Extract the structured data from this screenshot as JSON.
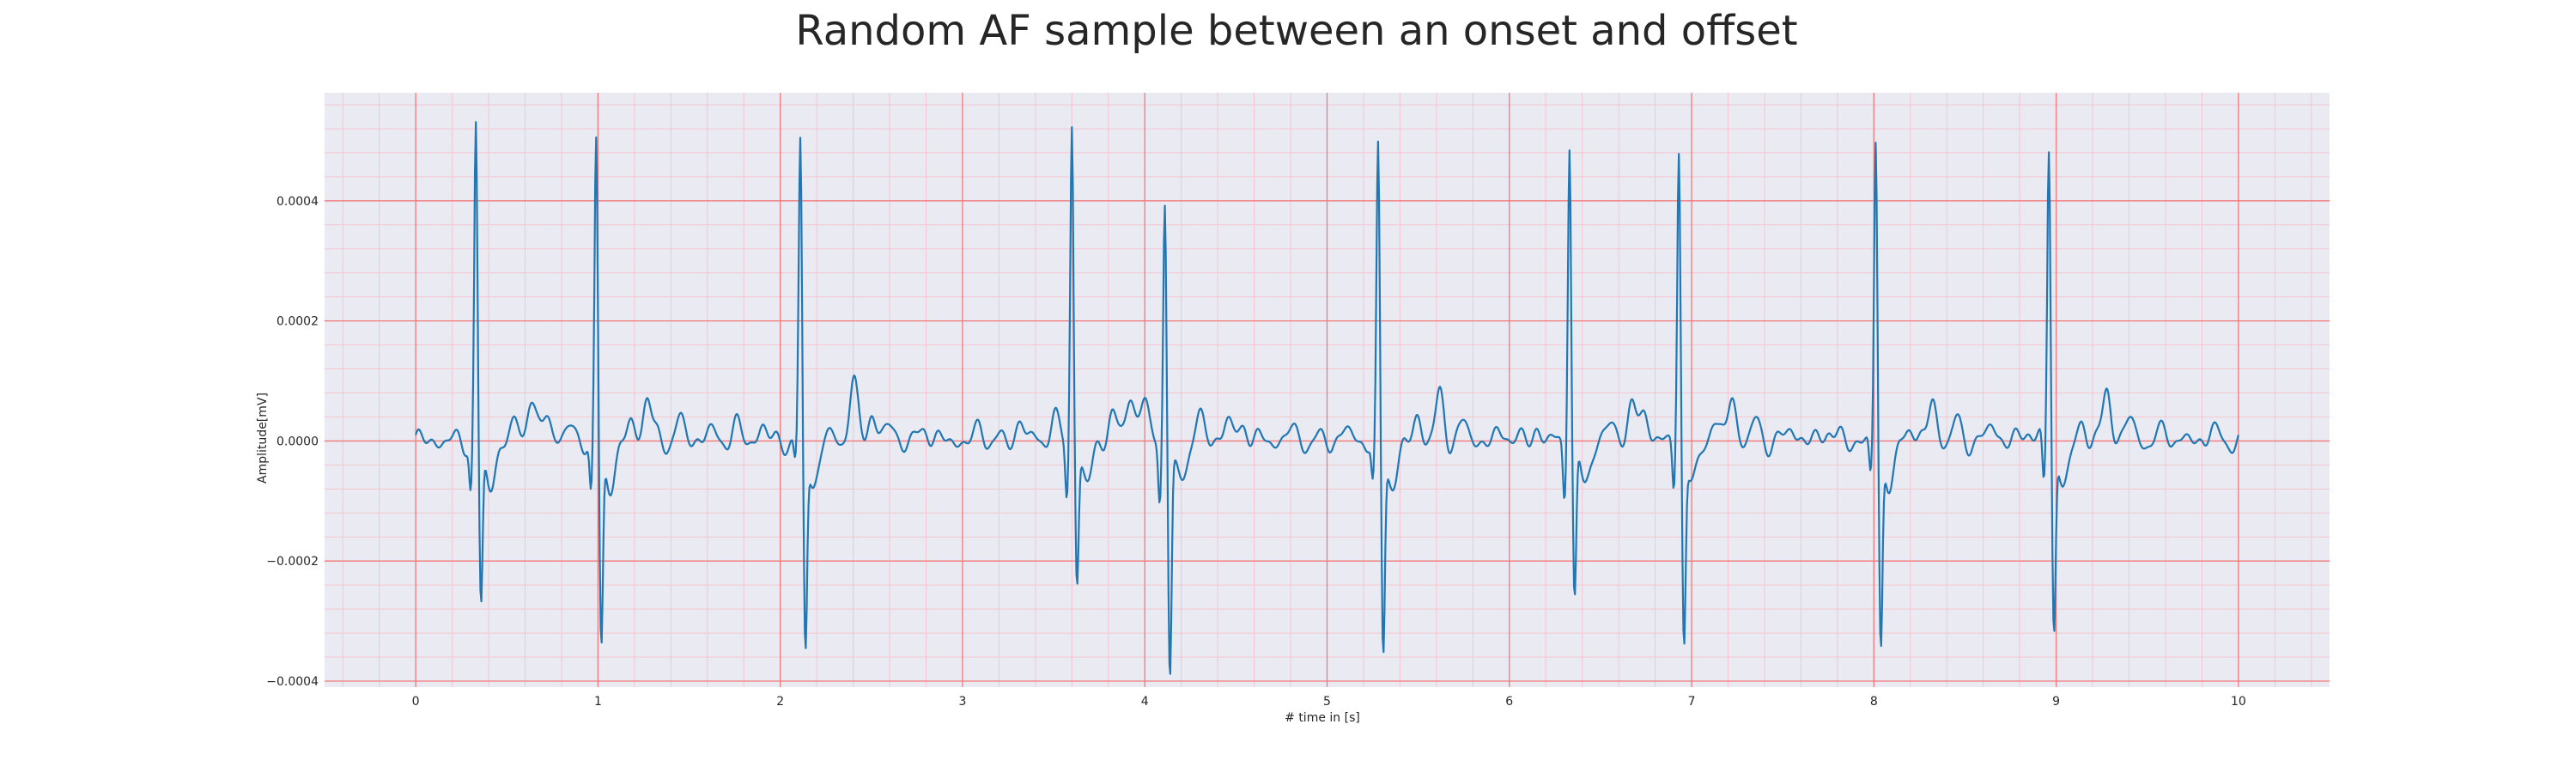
{
  "chart_data": {
    "type": "line",
    "title": "Random AF sample between an onset and offset",
    "xlabel": "# time in [s]",
    "ylabel": "Amplitude[mV]",
    "xlim": [
      -0.5,
      10.5
    ],
    "ylim": [
      -0.00041,
      0.00058
    ],
    "x_ticks": [
      0,
      1,
      2,
      3,
      4,
      5,
      6,
      7,
      8,
      9,
      10
    ],
    "x_tick_labels": [
      "0",
      "1",
      "2",
      "3",
      "4",
      "5",
      "6",
      "7",
      "8",
      "9",
      "10"
    ],
    "y_ticks": [
      -0.0004,
      -0.0002,
      0.0,
      0.0002,
      0.0004
    ],
    "y_tick_labels": [
      "−0.0004",
      "−0.0002",
      "0.0000",
      "0.0002",
      "0.0004"
    ],
    "grid": true,
    "minor_grid": true,
    "colors": {
      "plot_background": "#eaeaf2",
      "major_grid": "#f27a7a",
      "minor_grid": "#f3c6d0",
      "series": "#1f77b4",
      "text": "#262626"
    },
    "series": [
      {
        "beats": [
          {
            "t": 0.33,
            "r": 0.000525,
            "q": -8e-05,
            "s": -0.00027
          },
          {
            "t": 0.99,
            "r": 0.000495,
            "q": -9e-05,
            "s": -0.000335
          },
          {
            "t": 2.11,
            "r": 0.000495,
            "q": -4e-05,
            "s": -0.000335
          },
          {
            "t": 3.6,
            "r": 0.000535,
            "q": -9e-05,
            "s": -0.00022
          },
          {
            "t": 4.11,
            "r": 0.000405,
            "q": -0.0001,
            "s": -0.000375
          },
          {
            "t": 5.28,
            "r": 0.00048,
            "q": -7e-05,
            "s": -0.00034
          },
          {
            "t": 6.33,
            "r": 0.00051,
            "q": -9e-05,
            "s": -0.00026
          },
          {
            "t": 6.93,
            "r": 0.000485,
            "q": -8e-05,
            "s": -0.00032
          },
          {
            "t": 8.01,
            "r": 0.0005,
            "q": -6e-05,
            "s": -0.000335
          },
          {
            "t": 8.96,
            "r": 0.000495,
            "q": -8e-05,
            "s": -0.000305
          }
        ],
        "waves": [
          {
            "t": 0.55,
            "a": 3e-05
          },
          {
            "t": 0.63,
            "a": 7.2e-05
          },
          {
            "t": 0.72,
            "a": 5.5e-05
          },
          {
            "t": 0.85,
            "a": 2.5e-05
          },
          {
            "t": 1.18,
            "a": 3e-05
          },
          {
            "t": 1.27,
            "a": 7.8e-05
          },
          {
            "t": 1.45,
            "a": 3.5e-05
          },
          {
            "t": 1.6,
            "a": 2e-05
          },
          {
            "t": 1.75,
            "a": 2.8e-05
          },
          {
            "t": 1.9,
            "a": 2.5e-05
          },
          {
            "t": 2.25,
            "a": 2e-05
          },
          {
            "t": 2.4,
            "a": 9.7e-05
          },
          {
            "t": 2.5,
            "a": 5e-05
          },
          {
            "t": 2.6,
            "a": 3e-05
          },
          {
            "t": 2.8,
            "a": 2.5e-05
          },
          {
            "t": 3.1,
            "a": 2.2e-05
          },
          {
            "t": 3.32,
            "a": 3.5e-05
          },
          {
            "t": 3.5,
            "a": 4e-05
          },
          {
            "t": 3.82,
            "a": 4.5e-05
          },
          {
            "t": 3.92,
            "a": 9e-05
          },
          {
            "t": 4.0,
            "a": 7e-05
          },
          {
            "t": 4.3,
            "a": 4e-05
          },
          {
            "t": 4.45,
            "a": 4e-05
          },
          {
            "t": 4.55,
            "a": 3e-05
          },
          {
            "t": 4.8,
            "a": 2e-05
          },
          {
            "t": 5.1,
            "a": 2e-05
          },
          {
            "t": 5.5,
            "a": 4e-05
          },
          {
            "t": 5.62,
            "a": 7.5e-05
          },
          {
            "t": 5.75,
            "a": 3e-05
          },
          {
            "t": 5.98,
            "a": 2e-05
          },
          {
            "t": 6.15,
            "a": 2e-05
          },
          {
            "t": 6.55,
            "a": 3e-05
          },
          {
            "t": 6.67,
            "a": 7e-05
          },
          {
            "t": 6.75,
            "a": 5e-05
          },
          {
            "t": 7.12,
            "a": 4e-05
          },
          {
            "t": 7.22,
            "a": 7.5e-05
          },
          {
            "t": 7.35,
            "a": 3e-05
          },
          {
            "t": 7.55,
            "a": 2.5e-05
          },
          {
            "t": 7.75,
            "a": 2.5e-05
          },
          {
            "t": 8.2,
            "a": 3e-05
          },
          {
            "t": 8.32,
            "a": 6.5e-05
          },
          {
            "t": 8.45,
            "a": 3e-05
          },
          {
            "t": 8.65,
            "a": 3e-05
          },
          {
            "t": 8.85,
            "a": 2.5e-05
          },
          {
            "t": 9.15,
            "a": 3e-05
          },
          {
            "t": 9.28,
            "a": 8.5e-05
          },
          {
            "t": 9.4,
            "a": 4e-05
          },
          {
            "t": 9.6,
            "a": 2e-05
          },
          {
            "t": 9.85,
            "a": 2e-05
          }
        ],
        "x_start": 0.0,
        "x_end": 10.0,
        "sample_rate_hz": 200
      }
    ]
  }
}
